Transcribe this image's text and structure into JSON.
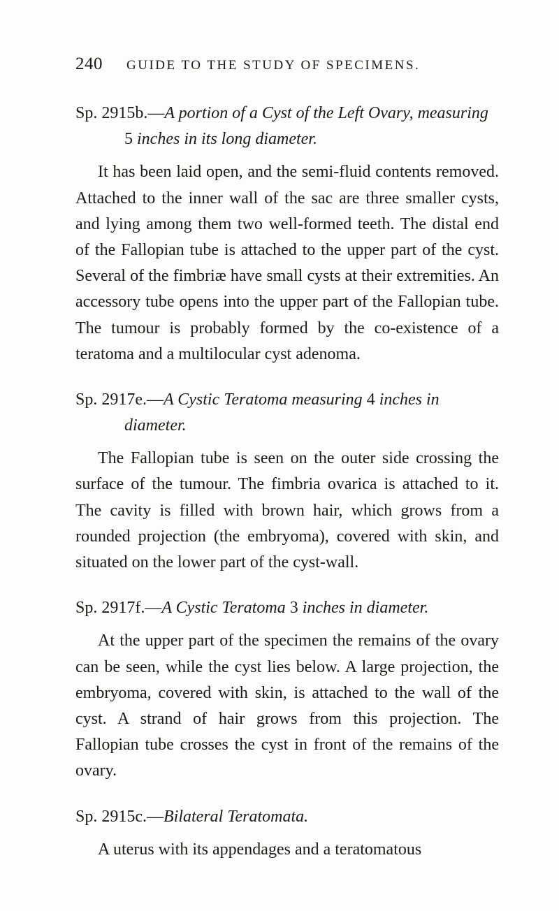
{
  "pageNumber": "240",
  "runningTitle": "GUIDE TO THE STUDY OF SPECIMENS.",
  "entries": [
    {
      "head": "Sp. 2915b.—<span class=\"ital\">A portion of a Cyst of the Left Ovary, measuring</span> 5 <span class=\"ital\">inches in its long diameter.</span>",
      "body": "It has been laid open, and the semi-fluid contents removed. Attached to the inner wall of the sac are three smaller cysts, and lying among them two well-formed teeth. The distal end of the Fallopian tube is attached to the upper part of the cyst. Several of the fimbriæ have small cysts at their extremities. An accessory tube opens into the upper part of the Fallopian tube. The tumour is probably formed by the co-existence of a teratoma and a multilocular cyst adenoma."
    },
    {
      "head": "Sp. 2917e.—<span class=\"ital\">A Cystic Teratoma measuring</span> 4 <span class=\"ital\">inches in diameter.</span>",
      "body": "The Fallopian tube is seen on the outer side crossing the surface of the tumour. The fimbria ovarica is attached to it. The cavity is filled with brown hair, which grows from a rounded projection (the embryoma), covered with skin, and situated on the lower part of the cyst-wall."
    },
    {
      "head": "Sp. 2917f.—<span class=\"ital\">A Cystic Teratoma</span> 3 <span class=\"ital\">inches in diameter.</span>",
      "body": "At the upper part of the specimen the remains of the ovary can be seen, while the cyst lies below. A large projection, the embryoma, covered with skin, is attached to the wall of the cyst. A strand of hair grows from this projection. The Fallopian tube crosses the cyst in front of the remains of the ovary."
    },
    {
      "head": "Sp. 2915c.—<span class=\"ital\">Bilateral Teratomata.</span>",
      "body": "A uterus with its appendages and a teratomatous"
    }
  ]
}
